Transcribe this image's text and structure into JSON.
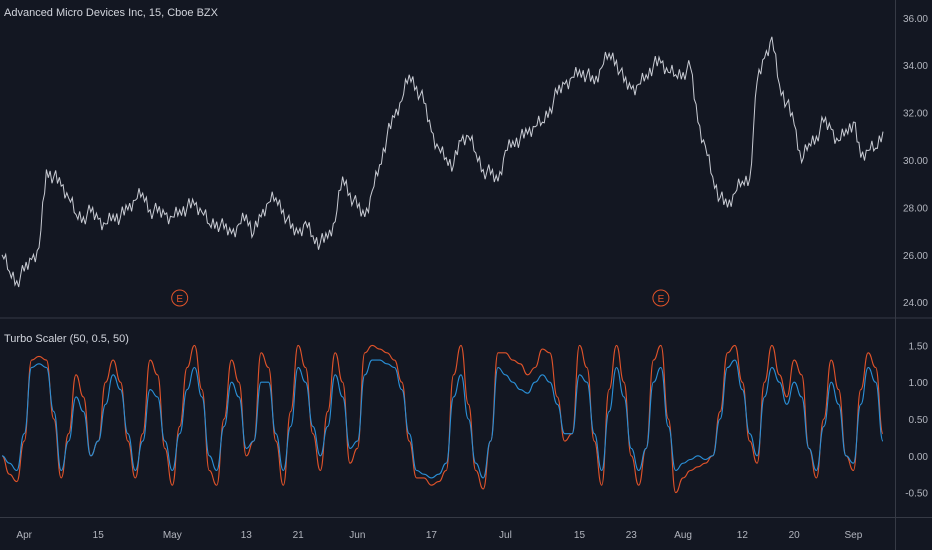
{
  "main_pane": {
    "legend": "Advanced Micro Devices Inc, 15, Cboe BZX",
    "earnings_marker": "E"
  },
  "indicator_pane": {
    "legend": "Turbo Scaler (50, 0.5, 50)"
  },
  "colors": {
    "background": "#131722",
    "price": "#c8cbd3",
    "signal_orange": "#e0532a",
    "signal_blue": "#2a8fd6",
    "axis_text": "#b2b5be",
    "separator": "#363a45"
  },
  "chart_data": [
    {
      "type": "line",
      "title": "Advanced Micro Devices Inc, 15, Cboe BZX",
      "ylim": [
        23.5,
        36.5
      ],
      "y_ticks": [
        "24.00",
        "26.00",
        "28.00",
        "30.00",
        "32.00",
        "34.00",
        "36.00"
      ],
      "x_tick_labels": [
        "Apr",
        "15",
        "May",
        "13",
        "21",
        "Jun",
        "17",
        "Jul",
        "15",
        "23",
        "Aug",
        "12",
        "20",
        "Sep"
      ],
      "x_tick_index": [
        3,
        13,
        23,
        33,
        40,
        48,
        58,
        68,
        78,
        85,
        92,
        100,
        107,
        115
      ],
      "x_count": 120,
      "earnings_at_index": [
        24,
        89
      ],
      "series": [
        {
          "values": [
            26.0,
            25.3,
            24.9,
            25.3,
            25.8,
            26.3,
            29.6,
            29.3,
            28.9,
            28.4,
            27.7,
            27.6,
            27.8,
            27.5,
            27.3,
            27.7,
            27.6,
            27.9,
            28.3,
            28.6,
            27.9,
            27.8,
            27.7,
            27.6,
            27.9,
            28.0,
            28.1,
            27.8,
            27.3,
            27.4,
            27.1,
            26.9,
            27.3,
            27.7,
            26.9,
            27.6,
            28.2,
            28.4,
            27.9,
            27.1,
            26.9,
            27.4,
            26.8,
            26.5,
            26.7,
            27.4,
            29.3,
            28.6,
            28.0,
            27.6,
            28.7,
            29.8,
            31.0,
            31.8,
            32.5,
            33.6,
            33.1,
            32.4,
            31.2,
            30.5,
            30.1,
            29.8,
            30.8,
            31.0,
            30.3,
            29.6,
            29.4,
            29.1,
            30.4,
            30.8,
            30.9,
            31.1,
            31.4,
            31.6,
            32.2,
            32.8,
            33.2,
            33.5,
            33.8,
            33.6,
            33.2,
            33.9,
            34.5,
            34.2,
            33.3,
            33.0,
            33.2,
            33.6,
            34.0,
            34.1,
            33.7,
            33.6,
            33.7,
            33.9,
            31.6,
            30.6,
            29.3,
            28.4,
            28.0,
            28.6,
            29.1,
            29.2,
            33.3,
            34.3,
            35.2,
            33.2,
            32.4,
            31.5,
            29.9,
            30.7,
            31.0,
            31.6,
            31.3,
            30.8,
            31.3,
            31.6,
            30.1,
            30.4,
            30.5,
            31.2
          ]
        }
      ]
    },
    {
      "type": "line",
      "title": "Turbo Scaler (50, 0.5, 50)",
      "ylim": [
        -0.75,
        1.75
      ],
      "y_ticks": [
        "-0.50",
        "0.00",
        "0.50",
        "1.00",
        "1.50"
      ],
      "series": [
        {
          "color": "#e0532a",
          "values": [
            0.0,
            -0.25,
            -0.35,
            0.2,
            1.3,
            1.35,
            1.3,
            0.5,
            -0.3,
            0.3,
            1.1,
            0.8,
            0.0,
            0.2,
            1.0,
            1.3,
            1.0,
            0.2,
            -0.3,
            0.3,
            1.3,
            1.1,
            0.1,
            -0.4,
            0.4,
            1.2,
            1.5,
            0.9,
            -0.2,
            -0.4,
            0.5,
            1.3,
            1.0,
            0.0,
            0.2,
            1.4,
            1.2,
            0.2,
            -0.4,
            0.6,
            1.5,
            1.2,
            0.3,
            -0.2,
            0.6,
            1.4,
            1.0,
            -0.1,
            0.1,
            1.4,
            1.5,
            1.45,
            1.4,
            1.3,
            1.0,
            0.2,
            -0.3,
            -0.3,
            -0.4,
            -0.35,
            -0.2,
            1.1,
            1.5,
            0.7,
            -0.2,
            -0.45,
            0.2,
            1.4,
            1.4,
            1.3,
            1.25,
            1.1,
            1.2,
            1.45,
            1.4,
            0.8,
            0.2,
            0.3,
            1.5,
            1.2,
            0.2,
            -0.4,
            0.9,
            1.5,
            1.0,
            0.0,
            -0.4,
            0.1,
            1.3,
            1.5,
            0.5,
            -0.5,
            -0.3,
            -0.2,
            -0.15,
            -0.1,
            0.0,
            0.6,
            1.4,
            1.5,
            1.0,
            0.2,
            -0.1,
            1.0,
            1.5,
            1.1,
            0.8,
            1.3,
            1.1,
            0.1,
            -0.3,
            0.5,
            1.3,
            0.9,
            0.0,
            -0.2,
            0.9,
            1.4,
            1.2,
            0.3
          ]
        },
        {
          "color": "#2a8fd6",
          "values": [
            0.0,
            -0.1,
            -0.2,
            0.3,
            1.2,
            1.25,
            1.2,
            0.6,
            -0.2,
            0.2,
            0.8,
            0.6,
            0.0,
            0.2,
            0.7,
            1.1,
            0.9,
            0.3,
            -0.2,
            0.2,
            0.9,
            0.8,
            0.2,
            -0.2,
            0.3,
            0.9,
            1.2,
            0.8,
            0.0,
            -0.2,
            0.4,
            1.0,
            0.8,
            0.1,
            0.2,
            1.0,
            1.0,
            0.3,
            -0.2,
            0.4,
            1.2,
            1.0,
            0.4,
            0.0,
            0.4,
            1.1,
            0.8,
            0.1,
            0.2,
            1.1,
            1.3,
            1.3,
            1.25,
            1.2,
            0.9,
            0.3,
            -0.2,
            -0.25,
            -0.3,
            -0.25,
            -0.1,
            0.8,
            1.1,
            0.5,
            -0.1,
            -0.3,
            0.2,
            1.2,
            1.1,
            1.0,
            0.9,
            0.85,
            1.0,
            1.1,
            1.0,
            0.7,
            0.3,
            0.3,
            1.1,
            1.0,
            0.3,
            -0.2,
            0.6,
            1.2,
            0.8,
            0.1,
            -0.2,
            0.1,
            1.0,
            1.2,
            0.4,
            -0.2,
            -0.1,
            -0.05,
            0.0,
            -0.05,
            0.0,
            0.5,
            1.2,
            1.3,
            0.9,
            0.3,
            0.0,
            0.8,
            1.2,
            1.0,
            0.7,
            1.0,
            0.8,
            0.1,
            -0.2,
            0.4,
            1.0,
            0.7,
            0.0,
            -0.1,
            0.7,
            1.2,
            1.0,
            0.2
          ]
        }
      ]
    }
  ]
}
